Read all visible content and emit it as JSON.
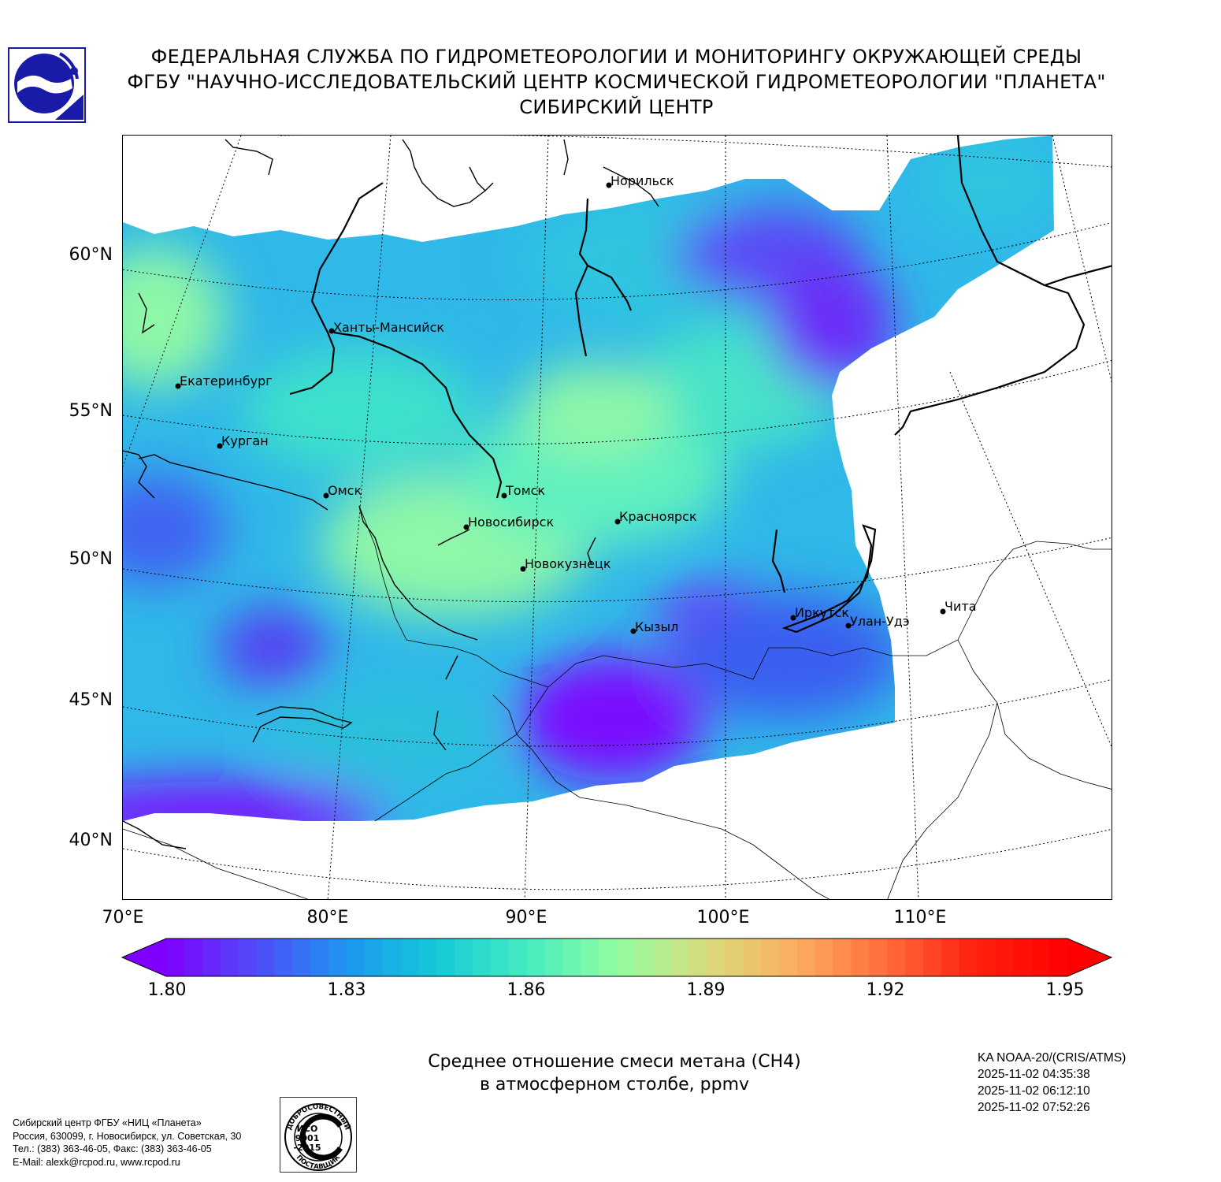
{
  "header": {
    "line1": "ФЕДЕРАЛЬНАЯ СЛУЖБА ПО ГИДРОМЕТЕОРОЛОГИИ И МОНИТОРИНГУ ОКРУЖАЮЩЕЙ СРЕДЫ",
    "line2": "ФГБУ \"НАУЧНО-ИССЛЕДОВАТЕЛЬСКИЙ ЦЕНТР КОСМИЧЕСКОЙ ГИДРОМЕТЕОРОЛОГИИ \"ПЛАНЕТА\"",
    "line3": "СИБИРСКИЙ ЦЕНТР"
  },
  "map": {
    "lat_labels": [
      "60°N",
      "55°N",
      "50°N",
      "45°N",
      "40°N"
    ],
    "lon_labels": [
      "70°E",
      "80°E",
      "90°E",
      "100°E",
      "110°E"
    ],
    "cities": [
      {
        "name": "Норильск"
      },
      {
        "name": "Ханты-Мансийск"
      },
      {
        "name": "Екатеринбург"
      },
      {
        "name": "Курган"
      },
      {
        "name": "Омск"
      },
      {
        "name": "Томск"
      },
      {
        "name": "Новосибирск"
      },
      {
        "name": "Красноярск"
      },
      {
        "name": "Новокузнецк"
      },
      {
        "name": "Кызыл"
      },
      {
        "name": "Иркутск"
      },
      {
        "name": "Улан-Удэ"
      },
      {
        "name": "Чита"
      }
    ]
  },
  "colorbar": {
    "min": 1.8,
    "max": 1.95,
    "ticks": [
      "1.80",
      "1.83",
      "1.86",
      "1.89",
      "1.92",
      "1.95"
    ],
    "colors": [
      "#7f00ff",
      "#4f4bf9",
      "#1d96f0",
      "#14c9d8",
      "#45ecc0",
      "#92fda0",
      "#d9dc7d",
      "#fcad5f",
      "#ff6a3a",
      "#ff2010",
      "#ff0000"
    ]
  },
  "caption": {
    "line1": "Среднее отношение смеси метана (CH4)",
    "line2": "в атмосферном столбе, ppmv"
  },
  "satellite": {
    "name": "KA NOAA-20/(CRIS/ATMS)",
    "times": [
      "2025-11-02 04:35:38",
      "2025-11-02 06:12:10",
      "2025-11-02 07:52:26"
    ]
  },
  "footer": {
    "line1": "Сибирский центр ФГБУ «НИЦ «Планета»",
    "line2": "Россия, 630099, г. Новосибирск, ул. Советская, 30",
    "line3": "Тел.: (383) 363-46-05, Факс: (383) 363-46-05",
    "line4": "E-Mail: alexk@rcpod.ru, www.rcpod.ru"
  },
  "iso_badge": {
    "top_text": "ДОБРОСОВЕСТНЫЙ",
    "mid1": "ИСО",
    "mid2": "9001",
    "mid3": "-2015",
    "bottom_text": "ПОСТАВЩИК"
  }
}
